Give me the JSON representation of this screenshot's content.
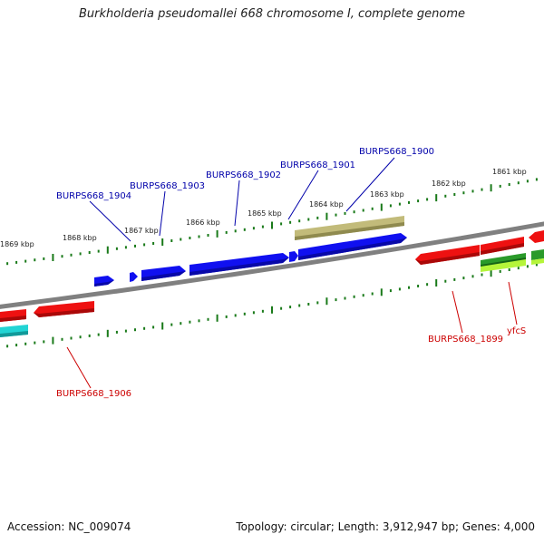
{
  "title": "Burkholderia pseudomallei 668 chromosome I, complete genome",
  "footer": {
    "accession": "Accession: NC_009074",
    "summary": "Topology: circular; Length: 3,912,947 bp; Genes: 4,000"
  },
  "ticks": [
    "1861 kbp",
    "1862 kbp",
    "1863 kbp",
    "1864 kbp",
    "1865 kbp",
    "1866 kbp",
    "1867 kbp",
    "1868 kbp",
    "1869 kbp"
  ],
  "genes_top": [
    "BURPS668_1900",
    "BURPS668_1901",
    "BURPS668_1902",
    "BURPS668_1903",
    "BURPS668_1904"
  ],
  "genes_bottom": [
    "BURPS668_1899",
    "yfcS",
    "BURPS668_1906"
  ],
  "colors": {
    "forward": "#0000ee",
    "reverse": "#ee1111",
    "tan": "#bdb76b",
    "green": "#228b22",
    "lime": "#adff2f",
    "cyan": "#00cccc",
    "tick": "#1a7a1a",
    "backbone": "#808080",
    "top_label": "#0000aa",
    "bottom_label": "#cc0000"
  }
}
